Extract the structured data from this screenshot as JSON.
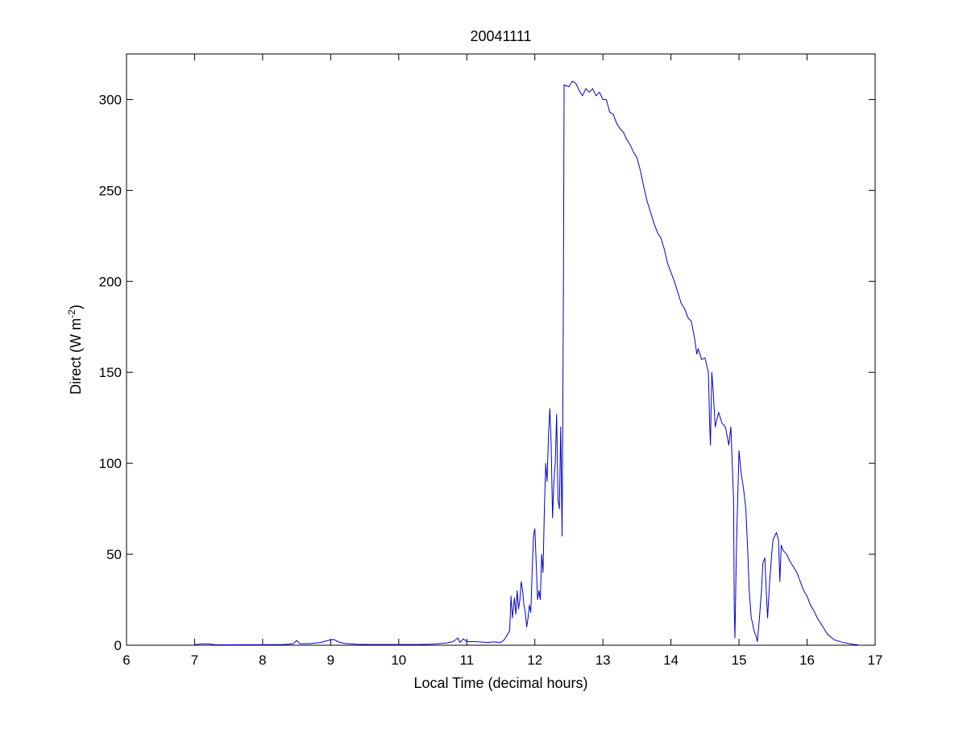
{
  "chart_data": {
    "type": "line",
    "title": "20041111",
    "xlabel": "Local Time (decimal hours)",
    "ylabel": {
      "prefix": "Direct (W m",
      "superscript": "-2",
      "suffix": ")"
    },
    "xlim": [
      6,
      17
    ],
    "ylim": [
      0,
      325
    ],
    "xticks": [
      6,
      7,
      8,
      9,
      10,
      11,
      12,
      13,
      14,
      15,
      16,
      17
    ],
    "yticks": [
      0,
      50,
      100,
      150,
      200,
      250,
      300
    ],
    "grid": false,
    "legend": "none",
    "series": [
      {
        "color": "#0000cc",
        "points": [
          [
            7.0,
            0.3
          ],
          [
            7.1,
            0.8
          ],
          [
            7.2,
            0.8
          ],
          [
            7.3,
            0.3
          ],
          [
            7.5,
            0.2
          ],
          [
            7.8,
            0.3
          ],
          [
            8.0,
            0.3
          ],
          [
            8.3,
            0.4
          ],
          [
            8.45,
            0.8
          ],
          [
            8.5,
            2.6
          ],
          [
            8.55,
            0.8
          ],
          [
            8.7,
            0.9
          ],
          [
            8.85,
            1.5
          ],
          [
            9.0,
            3.0
          ],
          [
            9.05,
            3.2
          ],
          [
            9.1,
            2.0
          ],
          [
            9.2,
            1.0
          ],
          [
            9.4,
            0.5
          ],
          [
            9.6,
            0.4
          ],
          [
            10.0,
            0.4
          ],
          [
            10.3,
            0.4
          ],
          [
            10.5,
            0.6
          ],
          [
            10.7,
            1.2
          ],
          [
            10.8,
            2.0
          ],
          [
            10.87,
            4.0
          ],
          [
            10.9,
            1.5
          ],
          [
            10.95,
            3.5
          ],
          [
            11.0,
            2.0
          ],
          [
            11.1,
            2.0
          ],
          [
            11.2,
            1.8
          ],
          [
            11.3,
            1.5
          ],
          [
            11.4,
            1.8
          ],
          [
            11.5,
            1.5
          ],
          [
            11.55,
            3.0
          ],
          [
            11.6,
            6.0
          ],
          [
            11.63,
            8.0
          ],
          [
            11.65,
            27.0
          ],
          [
            11.67,
            15.0
          ],
          [
            11.7,
            26.0
          ],
          [
            11.72,
            17.0
          ],
          [
            11.74,
            30.0
          ],
          [
            11.76,
            20.0
          ],
          [
            11.78,
            25.0
          ],
          [
            11.8,
            35.0
          ],
          [
            11.82,
            30.0
          ],
          [
            11.84,
            22.0
          ],
          [
            11.86,
            18.0
          ],
          [
            11.88,
            10.0
          ],
          [
            11.9,
            15.0
          ],
          [
            11.92,
            22.0
          ],
          [
            11.94,
            18.0
          ],
          [
            11.96,
            40.0
          ],
          [
            11.98,
            60.0
          ],
          [
            12.0,
            64.0
          ],
          [
            12.02,
            45.0
          ],
          [
            12.04,
            25.0
          ],
          [
            12.06,
            30.0
          ],
          [
            12.08,
            25.0
          ],
          [
            12.1,
            50.0
          ],
          [
            12.12,
            40.0
          ],
          [
            12.14,
            75.0
          ],
          [
            12.16,
            100.0
          ],
          [
            12.18,
            90.0
          ],
          [
            12.2,
            115.0
          ],
          [
            12.22,
            130.0
          ],
          [
            12.24,
            110.0
          ],
          [
            12.26,
            70.0
          ],
          [
            12.28,
            90.0
          ],
          [
            12.3,
            100.0
          ],
          [
            12.32,
            127.0
          ],
          [
            12.34,
            80.0
          ],
          [
            12.36,
            75.0
          ],
          [
            12.38,
            120.0
          ],
          [
            12.4,
            60.0
          ],
          [
            12.41,
            120.0
          ],
          [
            12.42,
            200.0
          ],
          [
            12.43,
            308.0
          ],
          [
            12.5,
            307.0
          ],
          [
            12.55,
            310.0
          ],
          [
            12.6,
            309.0
          ],
          [
            12.65,
            305.0
          ],
          [
            12.7,
            302.0
          ],
          [
            12.75,
            306.0
          ],
          [
            12.8,
            304.0
          ],
          [
            12.85,
            306.0
          ],
          [
            12.9,
            302.0
          ],
          [
            12.95,
            304.0
          ],
          [
            13.0,
            300.0
          ],
          [
            13.05,
            300.0
          ],
          [
            13.1,
            293.0
          ],
          [
            13.15,
            292.0
          ],
          [
            13.2,
            287.0
          ],
          [
            13.25,
            284.0
          ],
          [
            13.3,
            282.0
          ],
          [
            13.35,
            278.0
          ],
          [
            13.4,
            275.0
          ],
          [
            13.45,
            271.0
          ],
          [
            13.5,
            268.0
          ],
          [
            13.55,
            261.0
          ],
          [
            13.6,
            252.0
          ],
          [
            13.65,
            244.0
          ],
          [
            13.7,
            238.0
          ],
          [
            13.75,
            232.0
          ],
          [
            13.8,
            227.0
          ],
          [
            13.85,
            224.0
          ],
          [
            13.9,
            218.0
          ],
          [
            13.95,
            210.0
          ],
          [
            14.0,
            205.0
          ],
          [
            14.05,
            200.0
          ],
          [
            14.1,
            194.0
          ],
          [
            14.15,
            188.0
          ],
          [
            14.2,
            185.0
          ],
          [
            14.25,
            180.0
          ],
          [
            14.3,
            178.0
          ],
          [
            14.35,
            168.0
          ],
          [
            14.38,
            160.0
          ],
          [
            14.4,
            163.0
          ],
          [
            14.45,
            157.0
          ],
          [
            14.5,
            158.0
          ],
          [
            14.55,
            150.0
          ],
          [
            14.57,
            120.0
          ],
          [
            14.58,
            110.0
          ],
          [
            14.6,
            150.0
          ],
          [
            14.62,
            140.0
          ],
          [
            14.65,
            120.0
          ],
          [
            14.7,
            128.0
          ],
          [
            14.75,
            122.0
          ],
          [
            14.8,
            120.0
          ],
          [
            14.85,
            110.0
          ],
          [
            14.88,
            120.0
          ],
          [
            14.9,
            100.0
          ],
          [
            14.92,
            80.0
          ],
          [
            14.93,
            20.0
          ],
          [
            14.94,
            4.0
          ],
          [
            14.96,
            50.0
          ],
          [
            14.98,
            80.0
          ],
          [
            15.0,
            107.0
          ],
          [
            15.03,
            95.0
          ],
          [
            15.07,
            85.0
          ],
          [
            15.1,
            75.0
          ],
          [
            15.13,
            50.0
          ],
          [
            15.15,
            30.0
          ],
          [
            15.18,
            15.0
          ],
          [
            15.2,
            12.0
          ],
          [
            15.22,
            8.0
          ],
          [
            15.25,
            5.0
          ],
          [
            15.27,
            2.0
          ],
          [
            15.3,
            15.0
          ],
          [
            15.33,
            30.0
          ],
          [
            15.35,
            45.0
          ],
          [
            15.38,
            48.0
          ],
          [
            15.4,
            30.0
          ],
          [
            15.42,
            15.0
          ],
          [
            15.45,
            35.0
          ],
          [
            15.48,
            50.0
          ],
          [
            15.5,
            58.0
          ],
          [
            15.55,
            62.0
          ],
          [
            15.58,
            58.0
          ],
          [
            15.6,
            35.0
          ],
          [
            15.62,
            55.0
          ],
          [
            15.65,
            52.0
          ],
          [
            15.7,
            50.0
          ],
          [
            15.75,
            46.0
          ],
          [
            15.8,
            43.0
          ],
          [
            15.85,
            40.0
          ],
          [
            15.9,
            35.0
          ],
          [
            15.95,
            30.0
          ],
          [
            16.0,
            27.0
          ],
          [
            16.05,
            22.0
          ],
          [
            16.1,
            19.0
          ],
          [
            16.15,
            15.0
          ],
          [
            16.2,
            12.0
          ],
          [
            16.25,
            9.0
          ],
          [
            16.3,
            6.0
          ],
          [
            16.35,
            4.5
          ],
          [
            16.4,
            3.0
          ],
          [
            16.5,
            1.8
          ],
          [
            16.6,
            1.0
          ],
          [
            16.7,
            0.4
          ],
          [
            16.75,
            0.2
          ]
        ]
      }
    ]
  }
}
